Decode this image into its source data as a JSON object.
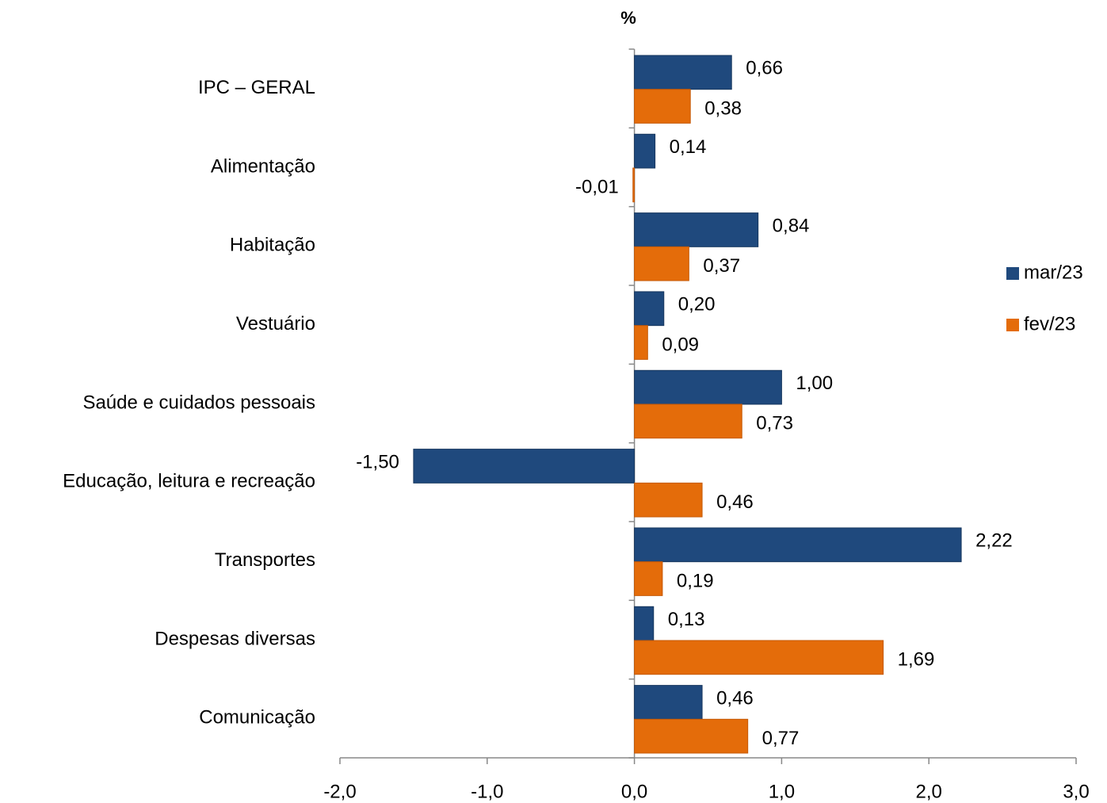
{
  "chart_data": {
    "type": "bar",
    "orientation": "horizontal",
    "title": "%",
    "categories": [
      "IPC – GERAL",
      "Alimentação",
      "Habitação",
      "Vestuário",
      "Saúde e cuidados pessoais",
      "Educação, leitura e recreação",
      "Transportes",
      "Despesas diversas",
      "Comunicação"
    ],
    "series": [
      {
        "name": "mar/23",
        "color": "#1f497d",
        "values": [
          0.66,
          0.14,
          0.84,
          0.2,
          1.0,
          -1.5,
          2.22,
          0.13,
          0.46
        ],
        "value_labels": [
          "0,66",
          "0,14",
          "0,84",
          "0,20",
          "1,00",
          "-1,50",
          "2,22",
          "0,13",
          "0,46"
        ]
      },
      {
        "name": "fev/23",
        "color": "#e46c0a",
        "values": [
          0.38,
          -0.01,
          0.37,
          0.09,
          0.73,
          0.46,
          0.19,
          1.69,
          0.77
        ],
        "value_labels": [
          "0,38",
          "-0,01",
          "0,37",
          "0,09",
          "0,73",
          "0,46",
          "0,19",
          "1,69",
          "0,77"
        ]
      }
    ],
    "xlim": [
      -2,
      3
    ],
    "xticks": [
      {
        "value": -2,
        "label": "-2,0"
      },
      {
        "value": -1,
        "label": "-1,0"
      },
      {
        "value": 0,
        "label": "0,0"
      },
      {
        "value": 1,
        "label": "1,0"
      },
      {
        "value": 2,
        "label": "2,0"
      },
      {
        "value": 3,
        "label": "3,0"
      }
    ],
    "grid": false,
    "legend": "right"
  }
}
